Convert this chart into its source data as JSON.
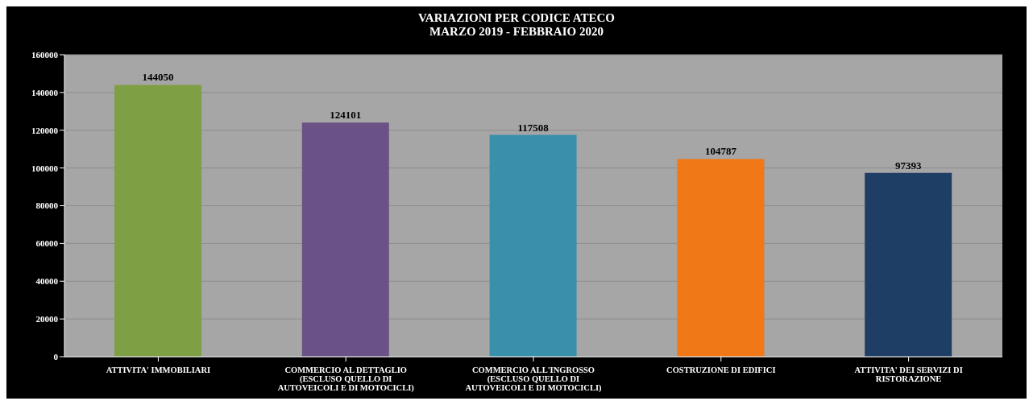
{
  "chart_data": {
    "type": "bar",
    "title": "VARIAZIONI PER CODICE ATECO\nMARZO 2019 - FEBBRAIO 2020",
    "categories": [
      "ATTIVITA' IMMOBILIARI",
      "COMMERCIO AL DETTAGLIO (ESCLUSO QUELLO DI AUTOVEICOLI E DI MOTOCICLI)",
      "COMMERCIO ALL'INGROSSO (ESCLUSO QUELLO DI AUTOVEICOLI E DI MOTOCICLI)",
      "COSTRUZIONE DI EDIFICI",
      "ATTIVITA' DEI SERVIZI DI RISTORAZIONE"
    ],
    "values": [
      144050,
      124101,
      117508,
      104787,
      97393
    ],
    "colors": [
      "#7f9f45",
      "#6a5287",
      "#3a8fab",
      "#f07817",
      "#1f3e66"
    ],
    "ylim": [
      0,
      160000
    ],
    "yticks": [
      0,
      20000,
      40000,
      60000,
      80000,
      100000,
      120000,
      140000,
      160000
    ],
    "grid": "y",
    "data_labels": true
  }
}
